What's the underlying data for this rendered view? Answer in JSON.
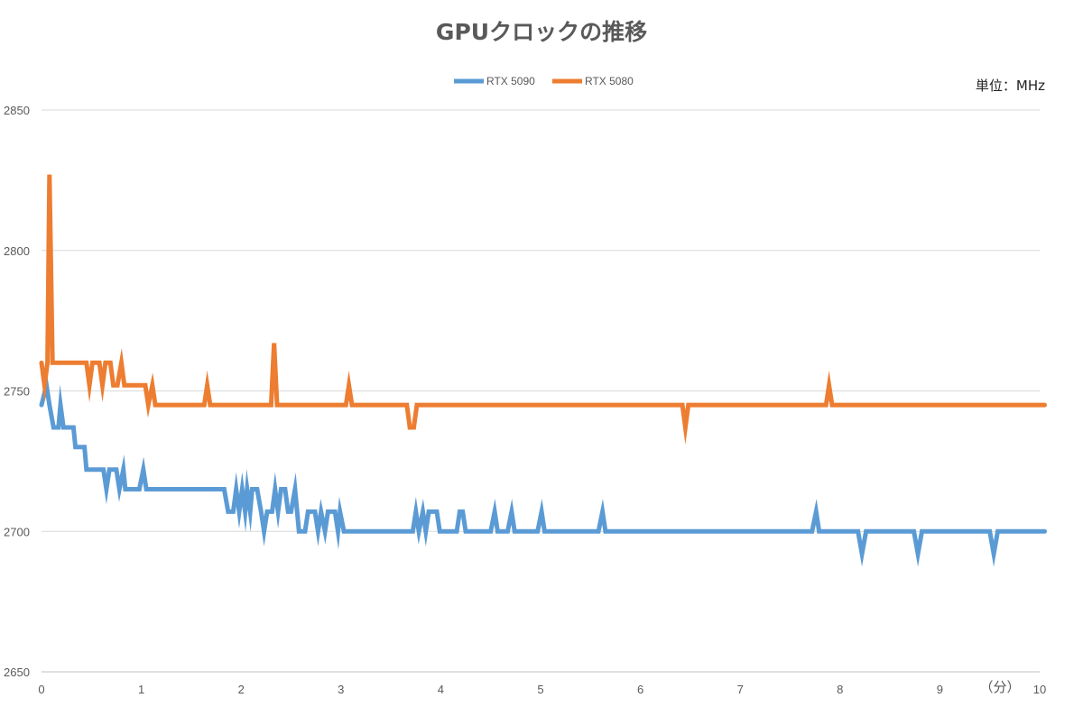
{
  "chart_data": {
    "type": "line",
    "title": "GPUクロックの推移",
    "unit_label": "単位：MHz",
    "x_unit_label": "（分）",
    "xlim": [
      0,
      10
    ],
    "ylim": [
      2650,
      2850
    ],
    "x_ticks": [
      "0",
      "1",
      "2",
      "3",
      "4",
      "5",
      "6",
      "7",
      "8",
      "9",
      "10"
    ],
    "y_ticks": [
      "2650",
      "2700",
      "2750",
      "2800",
      "2850"
    ],
    "grid": "horizontal",
    "legend_position": "top",
    "series": [
      {
        "name": "RTX 5090",
        "color": "#5B9BD5",
        "points": [
          [
            0,
            2745
          ],
          [
            0.05,
            2752
          ],
          [
            0.08,
            2745
          ],
          [
            0.12,
            2737
          ],
          [
            0.17,
            2737
          ],
          [
            0.19,
            2745
          ],
          [
            0.22,
            2737
          ],
          [
            0.32,
            2737
          ],
          [
            0.34,
            2730
          ],
          [
            0.43,
            2730
          ],
          [
            0.45,
            2722
          ],
          [
            0.62,
            2722
          ],
          [
            0.65,
            2715
          ],
          [
            0.68,
            2722
          ],
          [
            0.75,
            2722
          ],
          [
            0.78,
            2715
          ],
          [
            0.82,
            2722
          ],
          [
            0.84,
            2715
          ],
          [
            0.98,
            2715
          ],
          [
            1.02,
            2722
          ],
          [
            1.05,
            2715
          ],
          [
            1.83,
            2715
          ],
          [
            1.87,
            2707
          ],
          [
            1.92,
            2707
          ],
          [
            1.95,
            2715
          ],
          [
            1.98,
            2707
          ],
          [
            2.01,
            2715
          ],
          [
            2.04,
            2707
          ],
          [
            2.06,
            2715
          ],
          [
            2.09,
            2707
          ],
          [
            2.11,
            2715
          ],
          [
            2.16,
            2715
          ],
          [
            2.2,
            2707
          ],
          [
            2.23,
            2700
          ],
          [
            2.26,
            2707
          ],
          [
            2.31,
            2707
          ],
          [
            2.34,
            2715
          ],
          [
            2.37,
            2707
          ],
          [
            2.4,
            2715
          ],
          [
            2.44,
            2715
          ],
          [
            2.47,
            2707
          ],
          [
            2.5,
            2707
          ],
          [
            2.54,
            2715
          ],
          [
            2.58,
            2700
          ],
          [
            2.64,
            2700
          ],
          [
            2.67,
            2707
          ],
          [
            2.74,
            2707
          ],
          [
            2.77,
            2700
          ],
          [
            2.8,
            2707
          ],
          [
            2.84,
            2700
          ],
          [
            2.87,
            2707
          ],
          [
            2.94,
            2707
          ],
          [
            2.97,
            2700
          ],
          [
            2.99,
            2707
          ],
          [
            3.03,
            2700
          ],
          [
            3.72,
            2700
          ],
          [
            3.75,
            2707
          ],
          [
            3.78,
            2700
          ],
          [
            3.82,
            2707
          ],
          [
            3.85,
            2700
          ],
          [
            3.88,
            2707
          ],
          [
            3.96,
            2707
          ],
          [
            3.99,
            2700
          ],
          [
            4.16,
            2700
          ],
          [
            4.19,
            2707
          ],
          [
            4.22,
            2707
          ],
          [
            4.25,
            2700
          ],
          [
            4.5,
            2700
          ],
          [
            4.54,
            2707
          ],
          [
            4.57,
            2700
          ],
          [
            4.67,
            2700
          ],
          [
            4.71,
            2707
          ],
          [
            4.74,
            2700
          ],
          [
            4.97,
            2700
          ],
          [
            5.01,
            2707
          ],
          [
            5.04,
            2700
          ],
          [
            5.58,
            2700
          ],
          [
            5.62,
            2707
          ],
          [
            5.65,
            2700
          ],
          [
            7.72,
            2700
          ],
          [
            7.76,
            2707
          ],
          [
            7.79,
            2700
          ],
          [
            8.18,
            2700
          ],
          [
            8.22,
            2692
          ],
          [
            8.26,
            2700
          ],
          [
            8.74,
            2700
          ],
          [
            8.78,
            2692
          ],
          [
            8.82,
            2700
          ],
          [
            9.5,
            2700
          ],
          [
            9.54,
            2692
          ],
          [
            9.58,
            2700
          ],
          [
            10.05,
            2700
          ]
        ]
      },
      {
        "name": "RTX 5080",
        "color": "#ED7D31",
        "points": [
          [
            0,
            2760
          ],
          [
            0.03,
            2752
          ],
          [
            0.06,
            2760
          ],
          [
            0.08,
            2827
          ],
          [
            0.11,
            2760
          ],
          [
            0.45,
            2760
          ],
          [
            0.48,
            2752
          ],
          [
            0.51,
            2760
          ],
          [
            0.58,
            2760
          ],
          [
            0.61,
            2752
          ],
          [
            0.64,
            2760
          ],
          [
            0.69,
            2760
          ],
          [
            0.72,
            2752
          ],
          [
            0.76,
            2752
          ],
          [
            0.8,
            2760
          ],
          [
            0.83,
            2752
          ],
          [
            1.04,
            2752
          ],
          [
            1.07,
            2745
          ],
          [
            1.11,
            2752
          ],
          [
            1.14,
            2745
          ],
          [
            1.63,
            2745
          ],
          [
            1.66,
            2752
          ],
          [
            1.69,
            2745
          ],
          [
            2.3,
            2745
          ],
          [
            2.33,
            2767
          ],
          [
            2.36,
            2745
          ],
          [
            3.05,
            2745
          ],
          [
            3.08,
            2752
          ],
          [
            3.11,
            2745
          ],
          [
            3.66,
            2745
          ],
          [
            3.69,
            2737
          ],
          [
            3.73,
            2737
          ],
          [
            3.76,
            2745
          ],
          [
            6.42,
            2745
          ],
          [
            6.45,
            2737
          ],
          [
            6.48,
            2745
          ],
          [
            7.86,
            2745
          ],
          [
            7.89,
            2752
          ],
          [
            7.92,
            2745
          ],
          [
            10.05,
            2745
          ]
        ]
      }
    ]
  }
}
